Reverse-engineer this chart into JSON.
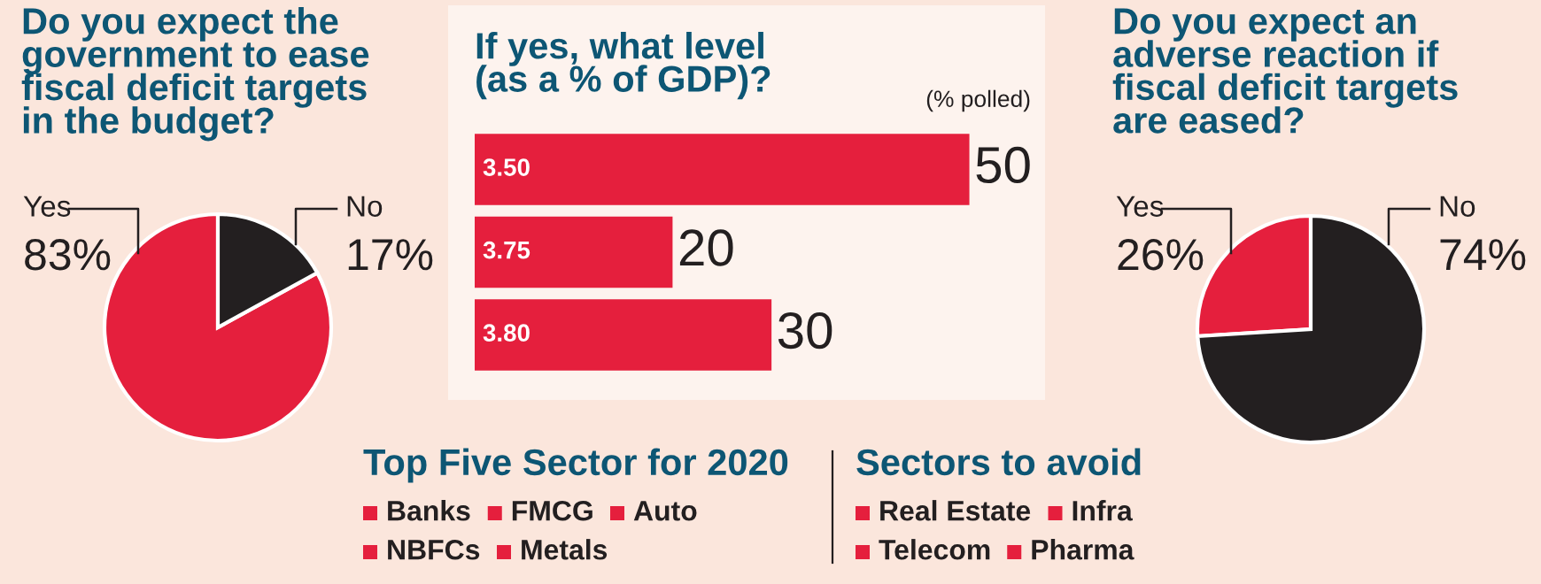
{
  "chart_data": [
    {
      "type": "pie",
      "title": "Do you expect the\ngovernment to ease\nfiscal deficit targets\nin the budget?",
      "categories": [
        "Yes",
        "No"
      ],
      "values": [
        83,
        17
      ],
      "value_labels": [
        "83%",
        "17%"
      ],
      "colors": [
        "#e51f3d",
        "#231f20"
      ]
    },
    {
      "type": "bar",
      "orientation": "horizontal",
      "title": "If yes, what level\n(as a % of GDP)?",
      "categories": [
        "3.50",
        "3.75",
        "3.80"
      ],
      "values": [
        50,
        20,
        30
      ],
      "color": "#e51f3d",
      "data_labels": true,
      "annotations": [
        "(% polled)"
      ]
    },
    {
      "type": "pie",
      "title": "Do you expect an\nadverse reaction if\nfiscal deficit targets\nare eased?",
      "categories": [
        "Yes",
        "No"
      ],
      "values": [
        26,
        74
      ],
      "value_labels": [
        "26%",
        "74%"
      ],
      "colors": [
        "#e51f3d",
        "#231f20"
      ]
    },
    {
      "type": "other",
      "title": "Top Five Sector for 2020",
      "categories": [
        "Banks",
        "FMCG",
        "Auto",
        "NBFCs",
        "Metals"
      ],
      "color": "#e51f3d"
    },
    {
      "type": "other",
      "title": "Sectors to avoid",
      "categories": [
        "Real Estate",
        "Infra",
        "Telecom",
        "Pharma"
      ],
      "color": "#e51f3d"
    }
  ]
}
